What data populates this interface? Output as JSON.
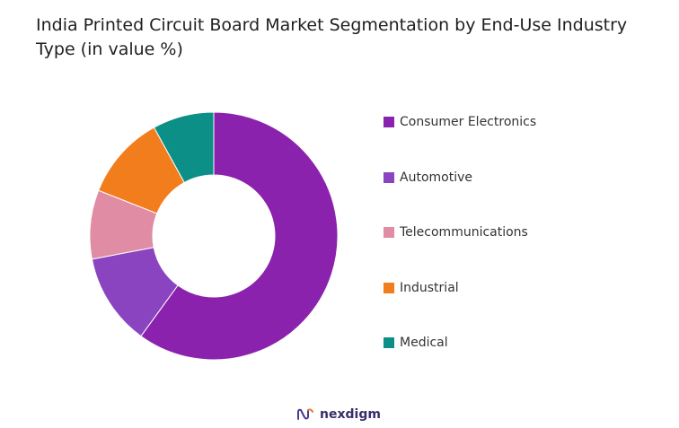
{
  "chart_data": {
    "type": "pie",
    "variant": "donut",
    "title": "India Printed Circuit Board Market Segmentation by End-Use Industry Type (in value %)",
    "categories": [
      "Consumer Electronics",
      "Automotive",
      "Telecommunications",
      "Industrial",
      "Medical"
    ],
    "values": [
      60,
      12,
      9,
      11,
      8
    ],
    "colors": [
      "#8b22ad",
      "#8a44c0",
      "#e08ca4",
      "#f27d1d",
      "#0b8f87"
    ],
    "legend_position": "right"
  },
  "brand": {
    "name": "nexdigm",
    "logo": "nexdigm-logo",
    "color": "#4b3b8f"
  }
}
